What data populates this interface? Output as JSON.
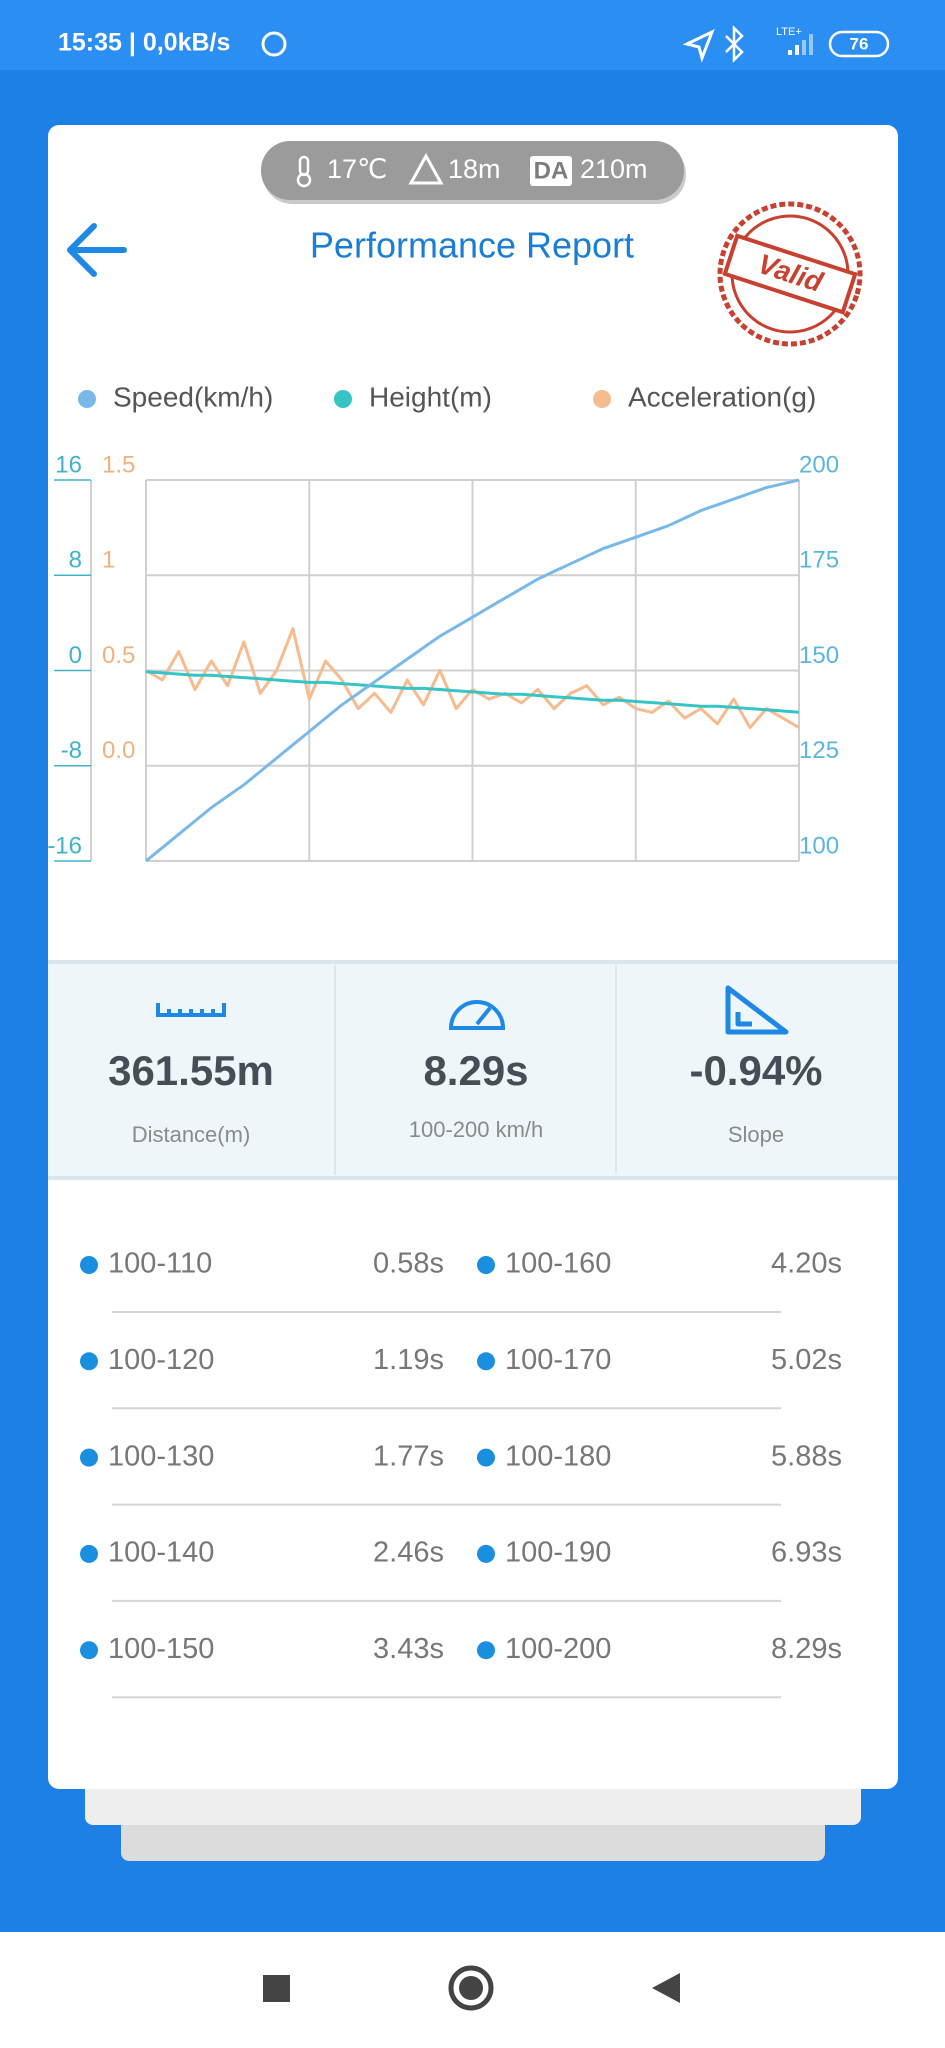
{
  "status_bar": {
    "time": "15:35 | 0,0kB/s",
    "network": "LTE+",
    "battery": "76"
  },
  "header": {
    "temperature": "17℃",
    "altitude": "18m",
    "density_label": "DA",
    "density_altitude": "210m",
    "title": "Performance Report",
    "stamp": "Valid"
  },
  "chart_data": {
    "type": "line",
    "categories": [
      null,
      null,
      null,
      null,
      null,
      null,
      null,
      null,
      null,
      null,
      null,
      null,
      null,
      null,
      null,
      null,
      null,
      null,
      null,
      null,
      null,
      null,
      null,
      null,
      null,
      null,
      null,
      null,
      null,
      null,
      null,
      null,
      null,
      null,
      null,
      null,
      null,
      null,
      null,
      null,
      null
    ],
    "series": [
      {
        "name": "Speed(km/h)",
        "color": "#79b9ea",
        "axis": "y2",
        "values": [
          100,
          103.5,
          107,
          110.5,
          114,
          117,
          120,
          123.5,
          127,
          130.5,
          134,
          137.5,
          141,
          144,
          147,
          150,
          153,
          156,
          159,
          161.5,
          164,
          166.5,
          169,
          171.5,
          174,
          176,
          178,
          180,
          182,
          183.5,
          185,
          186.5,
          188,
          190,
          192,
          193.5,
          195,
          196.5,
          198,
          199,
          200
        ]
      },
      {
        "name": "Height(m)",
        "color": "#36c4c4",
        "values": [
          -0.1,
          -0.2,
          -0.3,
          -0.4,
          -0.4,
          -0.5,
          -0.6,
          -0.7,
          -0.8,
          -0.9,
          -1,
          -1,
          -1.1,
          -1.2,
          -1.3,
          -1.4,
          -1.5,
          -1.5,
          -1.6,
          -1.7,
          -1.8,
          -1.9,
          -2,
          -2,
          -2.1,
          -2.2,
          -2.3,
          -2.4,
          -2.5,
          -2.5,
          -2.6,
          -2.7,
          -2.8,
          -2.9,
          -3,
          -3,
          -3.1,
          -3.2,
          -3.3,
          -3.4,
          -3.5
        ]
      },
      {
        "name": "Acceleration(g)",
        "color": "#f6bb8e",
        "axis": "y3",
        "values": [
          0.5,
          0.45,
          0.6,
          0.4,
          0.55,
          0.42,
          0.65,
          0.38,
          0.5,
          0.72,
          0.35,
          0.55,
          0.45,
          0.3,
          0.38,
          0.28,
          0.45,
          0.32,
          0.5,
          0.3,
          0.4,
          0.35,
          0.38,
          0.33,
          0.4,
          0.3,
          0.38,
          0.42,
          0.32,
          0.36,
          0.3,
          0.28,
          0.34,
          0.25,
          0.3,
          0.22,
          0.35,
          0.2,
          0.3,
          0.25,
          0.2
        ]
      }
    ],
    "ylim": [
      -16,
      16
    ],
    "yticks": [
      16,
      8,
      0,
      -8,
      -16
    ],
    "ytick_color": "#3fb3c9",
    "y2lim": [
      100,
      200
    ],
    "y2ticks": [
      200,
      175,
      150,
      125,
      100
    ],
    "y2tick_color": "#5cb6dc",
    "y3lim": [
      -0.5,
      1.5
    ],
    "y3ticks": [
      1.5,
      1,
      0.5,
      {
        "value": 0,
        "label": "0.0"
      }
    ],
    "y3tick_color": "#f2b27f",
    "grid": true
  },
  "stats": [
    {
      "value": "361.55m",
      "label": "Distance(m)"
    },
    {
      "value": "8.29s",
      "label": "100-200 km/h"
    },
    {
      "value": "-0.94%",
      "label": "Slope"
    }
  ],
  "splits": [
    {
      "range": "100-110",
      "time": "0.58s"
    },
    {
      "range": "100-120",
      "time": "1.19s"
    },
    {
      "range": "100-130",
      "time": "1.77s"
    },
    {
      "range": "100-140",
      "time": "2.46s"
    },
    {
      "range": "100-150",
      "time": "3.43s"
    },
    {
      "range": "100-160",
      "time": "4.20s"
    },
    {
      "range": "100-170",
      "time": "5.02s"
    },
    {
      "range": "100-180",
      "time": "5.88s"
    },
    {
      "range": "100-190",
      "time": "6.93s"
    },
    {
      "range": "100-200",
      "time": "8.29s"
    }
  ]
}
